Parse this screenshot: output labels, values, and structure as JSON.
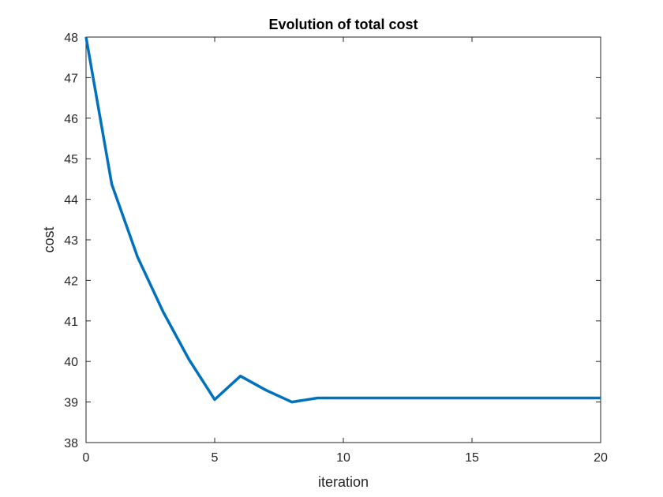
{
  "chart_data": {
    "type": "line",
    "title": "Evolution of total cost",
    "xlabel": "iteration",
    "ylabel": "cost",
    "xlim": [
      0,
      20
    ],
    "ylim": [
      38,
      48
    ],
    "x_ticks": [
      0,
      5,
      10,
      15,
      20
    ],
    "y_ticks": [
      38,
      39,
      40,
      41,
      42,
      43,
      44,
      45,
      46,
      47,
      48
    ],
    "grid": false,
    "series": [
      {
        "color": "#0072BD",
        "x": [
          0,
          1,
          2,
          3,
          4,
          5,
          6,
          7,
          8,
          9,
          10,
          11,
          12,
          13,
          14,
          15,
          16,
          17,
          18,
          19,
          20
        ],
        "y": [
          48.0,
          44.37,
          42.58,
          41.22,
          40.05,
          39.06,
          39.64,
          39.29,
          39.0,
          39.1,
          39.1,
          39.1,
          39.1,
          39.1,
          39.1,
          39.1,
          39.1,
          39.1,
          39.1,
          39.1,
          39.1
        ]
      }
    ]
  }
}
